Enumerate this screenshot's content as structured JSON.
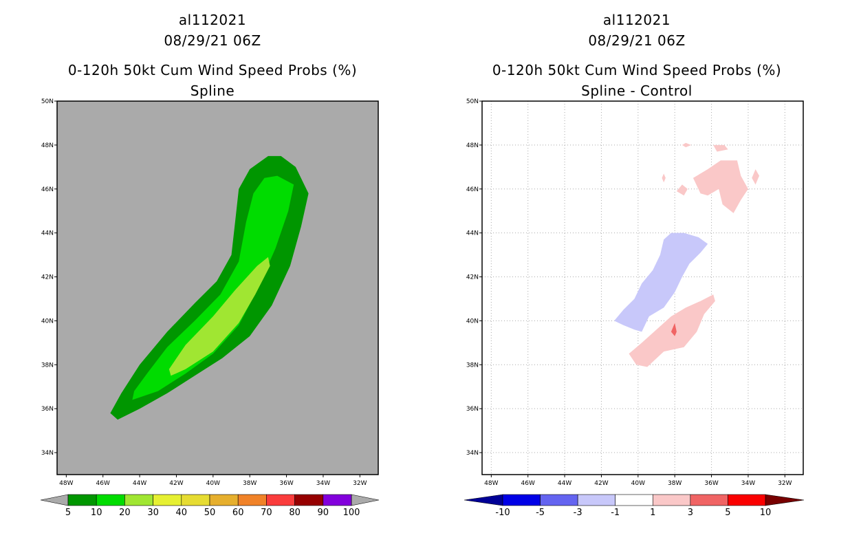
{
  "chart_data": [
    {
      "type": "heatmap",
      "title_lines": [
        "al112021",
        "08/29/21 06Z",
        "0-120h 50kt Cum Wind Speed Probs (%)",
        "Spline"
      ],
      "x_ticks": [
        "48W",
        "46W",
        "44W",
        "42W",
        "40W",
        "38W",
        "36W",
        "34W",
        "32W"
      ],
      "y_ticks": [
        "50N",
        "48N",
        "46N",
        "44N",
        "42N",
        "40N",
        "38N",
        "36N",
        "34N"
      ],
      "xlim_lon": [
        -48.5,
        -31.0
      ],
      "ylim_lat": [
        33.0,
        50.0
      ],
      "grid": false,
      "background_color": "#aaaaaa",
      "colorbar": {
        "labels": [
          "5",
          "10",
          "20",
          "30",
          "40",
          "50",
          "60",
          "70",
          "80",
          "90",
          "100"
        ],
        "colors": [
          "#009600",
          "#00dc00",
          "#a0e632",
          "#e6f032",
          "#e6dc32",
          "#e6af2d",
          "#f08228",
          "#fa3c3c",
          "#960000",
          "#8200dc"
        ],
        "end_color": "#aaaaaa"
      },
      "contours": [
        {
          "level": "5-10",
          "color": "#009600",
          "points": [
            [
              -45.2,
              35.5
            ],
            [
              -44.0,
              36.0
            ],
            [
              -42.5,
              36.7
            ],
            [
              -41.0,
              37.5
            ],
            [
              -39.5,
              38.3
            ],
            [
              -38.0,
              39.3
            ],
            [
              -36.8,
              40.7
            ],
            [
              -35.8,
              42.5
            ],
            [
              -35.2,
              44.3
            ],
            [
              -34.8,
              45.8
            ],
            [
              -35.5,
              47.0
            ],
            [
              -36.3,
              47.5
            ],
            [
              -37.0,
              47.5
            ],
            [
              -38.0,
              46.9
            ],
            [
              -38.6,
              46.0
            ],
            [
              -38.8,
              44.5
            ],
            [
              -39.0,
              43.0
            ],
            [
              -39.8,
              41.8
            ],
            [
              -41.0,
              40.8
            ],
            [
              -42.5,
              39.5
            ],
            [
              -44.0,
              38.0
            ],
            [
              -45.0,
              36.7
            ],
            [
              -45.6,
              35.8
            ]
          ]
        },
        {
          "level": "10-20",
          "color": "#00dc00",
          "points": [
            [
              -44.4,
              36.4
            ],
            [
              -43.0,
              36.8
            ],
            [
              -41.5,
              37.6
            ],
            [
              -40.0,
              38.5
            ],
            [
              -38.6,
              39.8
            ],
            [
              -37.6,
              41.4
            ],
            [
              -36.6,
              43.3
            ],
            [
              -35.9,
              45.0
            ],
            [
              -35.6,
              46.2
            ],
            [
              -36.5,
              46.6
            ],
            [
              -37.2,
              46.5
            ],
            [
              -37.8,
              45.8
            ],
            [
              -38.2,
              44.5
            ],
            [
              -38.6,
              42.7
            ],
            [
              -39.6,
              41.2
            ],
            [
              -41.0,
              40.0
            ],
            [
              -42.5,
              38.8
            ],
            [
              -43.6,
              37.6
            ],
            [
              -44.3,
              36.8
            ]
          ]
        },
        {
          "level": "20-30",
          "color": "#a0e632",
          "points": [
            [
              -42.3,
              37.5
            ],
            [
              -41.5,
              37.8
            ],
            [
              -40.0,
              38.6
            ],
            [
              -38.6,
              39.9
            ],
            [
              -37.7,
              41.2
            ],
            [
              -36.9,
              42.5
            ],
            [
              -37.0,
              42.9
            ],
            [
              -37.6,
              42.5
            ],
            [
              -38.8,
              41.4
            ],
            [
              -40.0,
              40.2
            ],
            [
              -41.5,
              38.9
            ],
            [
              -42.4,
              37.8
            ]
          ]
        }
      ]
    },
    {
      "type": "heatmap",
      "title_lines": [
        "al112021",
        "08/29/21 06Z",
        "0-120h 50kt Cum Wind Speed Probs (%)",
        "Spline - Control"
      ],
      "x_ticks": [
        "48W",
        "46W",
        "44W",
        "42W",
        "40W",
        "38W",
        "36W",
        "34W",
        "32W"
      ],
      "y_ticks": [
        "50N",
        "48N",
        "46N",
        "44N",
        "42N",
        "40N",
        "38N",
        "36N",
        "34N"
      ],
      "xlim_lon": [
        -48.5,
        -31.0
      ],
      "ylim_lat": [
        33.0,
        50.0
      ],
      "grid": true,
      "background_color": "#ffffff",
      "colorbar": {
        "labels": [
          "-10",
          "-5",
          "-3",
          "-1",
          "1",
          "3",
          "5",
          "10"
        ],
        "colors": [
          "#0000e6",
          "#6464f0",
          "#c8c8fa",
          "#ffffff",
          "#fac8c8",
          "#f06464",
          "#fa0000"
        ],
        "left_end_color": "#000096",
        "right_end_color": "#780000"
      },
      "contours": [
        {
          "level": "-3 to -1",
          "color": "#c8c8fa",
          "points": [
            [
              -41.3,
              40.0
            ],
            [
              -40.8,
              40.5
            ],
            [
              -40.2,
              41.0
            ],
            [
              -39.8,
              41.7
            ],
            [
              -39.2,
              42.3
            ],
            [
              -38.8,
              43.0
            ],
            [
              -38.6,
              43.7
            ],
            [
              -38.2,
              44.0
            ],
            [
              -37.5,
              44.0
            ],
            [
              -36.7,
              43.8
            ],
            [
              -36.2,
              43.5
            ],
            [
              -36.6,
              43.1
            ],
            [
              -37.2,
              42.6
            ],
            [
              -37.6,
              42.0
            ],
            [
              -38.0,
              41.3
            ],
            [
              -38.6,
              40.6
            ],
            [
              -39.4,
              40.2
            ],
            [
              -39.8,
              39.5
            ],
            [
              -40.2,
              39.6
            ],
            [
              -40.8,
              39.8
            ]
          ]
        },
        {
          "level": "1-3",
          "color": "#fac8c8",
          "points": [
            [
              -40.5,
              38.5
            ],
            [
              -39.8,
              39.0
            ],
            [
              -39.0,
              39.6
            ],
            [
              -38.2,
              40.2
            ],
            [
              -37.4,
              40.6
            ],
            [
              -36.6,
              40.9
            ],
            [
              -35.9,
              41.2
            ],
            [
              -35.8,
              40.9
            ],
            [
              -36.4,
              40.3
            ],
            [
              -36.8,
              39.5
            ],
            [
              -37.5,
              38.8
            ],
            [
              -38.6,
              38.6
            ],
            [
              -39.5,
              37.9
            ],
            [
              -40.1,
              38.0
            ]
          ]
        },
        {
          "level": "1-3",
          "color": "#fac8c8",
          "points": [
            [
              -37.0,
              46.5
            ],
            [
              -36.2,
              46.9
            ],
            [
              -35.5,
              47.3
            ],
            [
              -34.6,
              47.3
            ],
            [
              -34.4,
              46.6
            ],
            [
              -34.0,
              46.0
            ],
            [
              -34.4,
              45.5
            ],
            [
              -34.8,
              44.9
            ],
            [
              -35.4,
              45.3
            ],
            [
              -35.6,
              46.0
            ],
            [
              -36.2,
              45.7
            ],
            [
              -36.6,
              45.8
            ]
          ]
        },
        {
          "level": "1-3",
          "color": "#fac8c8",
          "points": [
            [
              -35.9,
              48.0
            ],
            [
              -35.3,
              48.0
            ],
            [
              -35.1,
              47.8
            ],
            [
              -35.7,
              47.7
            ]
          ]
        },
        {
          "level": "1-3",
          "color": "#fac8c8",
          "points": [
            [
              -37.6,
              48.0
            ],
            [
              -37.4,
              48.1
            ],
            [
              -37.1,
              48.0
            ],
            [
              -37.4,
              47.9
            ]
          ]
        },
        {
          "level": "1-3",
          "color": "#fac8c8",
          "points": [
            [
              -37.6,
              46.2
            ],
            [
              -37.3,
              46.0
            ],
            [
              -37.5,
              45.7
            ],
            [
              -37.9,
              45.9
            ]
          ]
        },
        {
          "level": "1-3",
          "color": "#fac8c8",
          "points": [
            [
              -38.6,
              46.7
            ],
            [
              -38.5,
              46.5
            ],
            [
              -38.6,
              46.3
            ],
            [
              -38.7,
              46.5
            ]
          ]
        },
        {
          "level": "1-3",
          "color": "#fac8c8",
          "points": [
            [
              -33.6,
              46.9
            ],
            [
              -33.4,
              46.6
            ],
            [
              -33.6,
              46.2
            ],
            [
              -33.8,
              46.5
            ]
          ]
        },
        {
          "level": "3-5",
          "color": "#f06464",
          "points": [
            [
              -38.0,
              39.9
            ],
            [
              -37.9,
              39.5
            ],
            [
              -38.0,
              39.3
            ],
            [
              -38.2,
              39.5
            ]
          ]
        }
      ]
    }
  ]
}
